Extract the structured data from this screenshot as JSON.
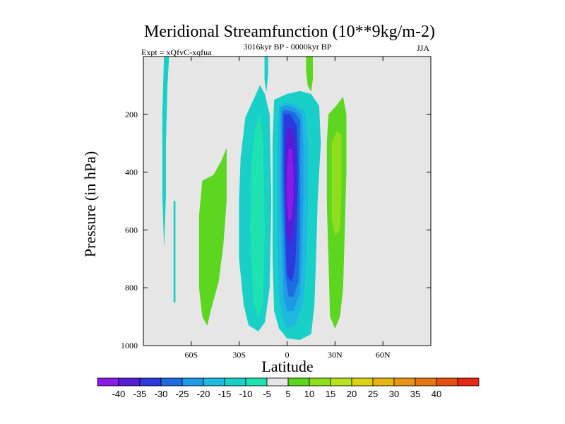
{
  "chart_data": {
    "type": "heatmap",
    "title": "Meridional Streamfunction (10**9kg/m-2)",
    "subtitle_left": "Expt = xQfvC-xqfua",
    "subtitle_center": "3016kyr BP - 0000kyr BP",
    "subtitle_right": "JJA",
    "xlabel": "Latitude",
    "ylabel": "Pressure (in hPa)",
    "xlim": [
      -90,
      90
    ],
    "ylim": [
      1000,
      0
    ],
    "x_ticks": [
      {
        "value": -60,
        "label": "60S"
      },
      {
        "value": -30,
        "label": "30S"
      },
      {
        "value": 0,
        "label": "0"
      },
      {
        "value": 30,
        "label": "30N"
      },
      {
        "value": 60,
        "label": "60N"
      }
    ],
    "y_ticks": [
      {
        "value": 200,
        "label": "200"
      },
      {
        "value": 400,
        "label": "400"
      },
      {
        "value": 600,
        "label": "600"
      },
      {
        "value": 800,
        "label": "800"
      },
      {
        "value": 1000,
        "label": "1000"
      }
    ],
    "background_color": "#e6e6e6",
    "levels": [
      {
        "label": "-40",
        "color": "#8a1be6"
      },
      {
        "label": "-35",
        "color": "#5a1bd6"
      },
      {
        "label": "-30",
        "color": "#2a3adc"
      },
      {
        "label": "-25",
        "color": "#1e6de0"
      },
      {
        "label": "-20",
        "color": "#1e9ae6"
      },
      {
        "label": "-15",
        "color": "#1eb8e0"
      },
      {
        "label": "-10",
        "color": "#19d0c8"
      },
      {
        "label": "-5",
        "color": "#1ee2b0"
      },
      {
        "label": "5",
        "color": "#e6e6e6"
      },
      {
        "label": "10",
        "color": "#5cd61e"
      },
      {
        "label": "15",
        "color": "#8ede1e"
      },
      {
        "label": "20",
        "color": "#b8e21e"
      },
      {
        "label": "25",
        "color": "#dcd214"
      },
      {
        "label": "30",
        "color": "#e6b414"
      },
      {
        "label": "35",
        "color": "#e69614"
      },
      {
        "label": "40",
        "color": "#e67814"
      },
      {
        "label": "",
        "color": "#e65014"
      },
      {
        "label": "",
        "color": "#e62814"
      }
    ],
    "regions": [
      {
        "name": "southern-band-thin",
        "color": "#19d0c8",
        "points": [
          [
            -77,
            0
          ],
          [
            -74,
            0
          ],
          [
            -75,
            100
          ],
          [
            -76,
            300
          ],
          [
            -76,
            480
          ],
          [
            -77,
            650
          ],
          [
            -78,
            480
          ],
          [
            -78,
            200
          ]
        ]
      },
      {
        "name": "southern-band-sliver",
        "color": "#19d0c8",
        "points": [
          [
            -71,
            500
          ],
          [
            -70,
            500
          ],
          [
            -70,
            850
          ],
          [
            -71,
            850
          ]
        ]
      },
      {
        "name": "southern-positive-lobe",
        "color": "#5cd61e",
        "points": [
          [
            -46,
            410
          ],
          [
            -41,
            360
          ],
          [
            -38,
            320
          ],
          [
            -38,
            500
          ],
          [
            -40,
            650
          ],
          [
            -43,
            780
          ],
          [
            -48,
            880
          ],
          [
            -50,
            930
          ],
          [
            -53,
            900
          ],
          [
            -55,
            800
          ],
          [
            -55,
            550
          ],
          [
            -53,
            430
          ]
        ]
      },
      {
        "name": "southern-negative-broad",
        "color": "#19d0c8",
        "points": [
          [
            -26,
            210
          ],
          [
            -21,
            150
          ],
          [
            -17,
            100
          ],
          [
            -14,
            130
          ],
          [
            -11,
            200
          ],
          [
            -10,
            500
          ],
          [
            -11,
            800
          ],
          [
            -14,
            920
          ],
          [
            -18,
            950
          ],
          [
            -24,
            930
          ],
          [
            -27,
            860
          ],
          [
            -30,
            700
          ],
          [
            -30,
            500
          ],
          [
            -29,
            350
          ]
        ]
      },
      {
        "name": "southern-negative-inner",
        "color": "#1ee2b0",
        "points": [
          [
            -22,
            350
          ],
          [
            -20,
            250
          ],
          [
            -17,
            200
          ],
          [
            -15,
            300
          ],
          [
            -14,
            600
          ],
          [
            -15,
            850
          ],
          [
            -18,
            900
          ],
          [
            -21,
            850
          ],
          [
            -23,
            600
          ]
        ]
      },
      {
        "name": "upper-tongue",
        "color": "#19d0c8",
        "points": [
          [
            -14,
            0
          ],
          [
            -12,
            0
          ],
          [
            -12,
            60
          ],
          [
            -13,
            120
          ],
          [
            -14,
            80
          ]
        ]
      },
      {
        "name": "upper-tongue-positive",
        "color": "#5cd61e",
        "points": [
          [
            12,
            0
          ],
          [
            16,
            0
          ],
          [
            16,
            80
          ],
          [
            15,
            120
          ],
          [
            13,
            100
          ],
          [
            12,
            50
          ]
        ]
      },
      {
        "name": "central-negative-outer",
        "color": "#19d0c8",
        "points": [
          [
            -8,
            150
          ],
          [
            0,
            130
          ],
          [
            8,
            120
          ],
          [
            15,
            130
          ],
          [
            20,
            170
          ],
          [
            21,
            300
          ],
          [
            19,
            500
          ],
          [
            18,
            700
          ],
          [
            17,
            860
          ],
          [
            15,
            960
          ],
          [
            8,
            980
          ],
          [
            0,
            975
          ],
          [
            -5,
            940
          ],
          [
            -8,
            880
          ],
          [
            -9,
            700
          ],
          [
            -9,
            500
          ],
          [
            -9,
            300
          ]
        ]
      },
      {
        "name": "central-1",
        "color": "#1eb8e0",
        "points": [
          [
            -5,
            170
          ],
          [
            0,
            160
          ],
          [
            6,
            170
          ],
          [
            11,
            190
          ],
          [
            13,
            300
          ],
          [
            13,
            500
          ],
          [
            12,
            700
          ],
          [
            10,
            850
          ],
          [
            5,
            930
          ],
          [
            0,
            940
          ],
          [
            -3,
            900
          ],
          [
            -5,
            820
          ],
          [
            -6,
            600
          ],
          [
            -6,
            350
          ]
        ]
      },
      {
        "name": "central-2",
        "color": "#1e9ae6",
        "points": [
          [
            -4,
            175
          ],
          [
            0,
            170
          ],
          [
            5,
            180
          ],
          [
            9,
            200
          ],
          [
            10,
            300
          ],
          [
            10,
            500
          ],
          [
            9,
            700
          ],
          [
            8,
            820
          ],
          [
            4,
            880
          ],
          [
            0,
            880
          ],
          [
            -2,
            830
          ],
          [
            -3,
            700
          ],
          [
            -4,
            500
          ],
          [
            -4,
            300
          ]
        ]
      },
      {
        "name": "central-3",
        "color": "#1e6de0",
        "points": [
          [
            -3,
            190
          ],
          [
            0,
            185
          ],
          [
            5,
            195
          ],
          [
            8,
            220
          ],
          [
            8,
            400
          ],
          [
            8,
            600
          ],
          [
            7,
            780
          ],
          [
            4,
            830
          ],
          [
            1,
            830
          ],
          [
            -1,
            760
          ],
          [
            -2,
            600
          ],
          [
            -3,
            450
          ],
          [
            -3,
            300
          ]
        ]
      },
      {
        "name": "central-4",
        "color": "#2a3adc",
        "points": [
          [
            -2,
            200
          ],
          [
            2,
            200
          ],
          [
            6,
            240
          ],
          [
            7,
            400
          ],
          [
            6,
            600
          ],
          [
            5,
            720
          ],
          [
            3,
            780
          ],
          [
            0,
            760
          ],
          [
            -1,
            600
          ],
          [
            -2,
            400
          ]
        ]
      },
      {
        "name": "central-5",
        "color": "#5a1bd6",
        "points": [
          [
            0,
            250
          ],
          [
            3,
            250
          ],
          [
            5,
            320
          ],
          [
            5,
            450
          ],
          [
            4,
            580
          ],
          [
            2,
            650
          ],
          [
            0,
            620
          ],
          [
            -1,
            500
          ],
          [
            -1,
            350
          ]
        ]
      },
      {
        "name": "central-core",
        "color": "#8a1be6",
        "points": [
          [
            1,
            320
          ],
          [
            3,
            320
          ],
          [
            4,
            400
          ],
          [
            4,
            480
          ],
          [
            3,
            560
          ],
          [
            1,
            570
          ],
          [
            0,
            500
          ],
          [
            0,
            400
          ]
        ]
      },
      {
        "name": "northern-positive-outer",
        "color": "#5cd61e",
        "points": [
          [
            26,
            200
          ],
          [
            31,
            170
          ],
          [
            35,
            140
          ],
          [
            37,
            200
          ],
          [
            37,
            400
          ],
          [
            36,
            600
          ],
          [
            35,
            800
          ],
          [
            33,
            900
          ],
          [
            30,
            940
          ],
          [
            27,
            900
          ],
          [
            26,
            700
          ],
          [
            25,
            500
          ],
          [
            25,
            300
          ]
        ]
      },
      {
        "name": "northern-positive-inner",
        "color": "#8ede1e",
        "points": [
          [
            28,
            300
          ],
          [
            31,
            260
          ],
          [
            34,
            270
          ],
          [
            34,
            450
          ],
          [
            33,
            600
          ],
          [
            30,
            620
          ],
          [
            28,
            560
          ],
          [
            28,
            400
          ]
        ]
      }
    ]
  },
  "colorbar": {
    "tick_labels": [
      "-40",
      "-35",
      "-30",
      "-25",
      "-20",
      "-15",
      "-10",
      "-5",
      "5",
      "10",
      "15",
      "20",
      "25",
      "30",
      "35",
      "40"
    ]
  }
}
